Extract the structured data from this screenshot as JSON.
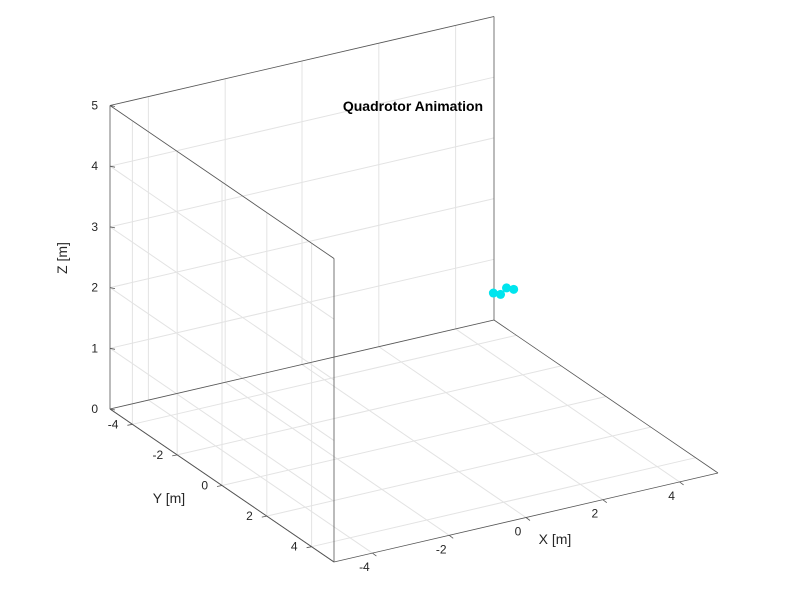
{
  "chart_data": {
    "type": "scatter",
    "title": "Quadrotor Animation",
    "xlabel": "X [m]",
    "ylabel": "Y [m]",
    "zlabel": "Z [m]",
    "xlim": [
      -5,
      5
    ],
    "ylim": [
      -5,
      5
    ],
    "zlim": [
      0,
      5
    ],
    "x_ticks": [
      -4,
      -2,
      0,
      2,
      4
    ],
    "y_ticks": [
      -4,
      -2,
      0,
      2,
      4
    ],
    "z_ticks": [
      0,
      1,
      2,
      3,
      4,
      5
    ],
    "x_tick_labels": [
      "-4",
      "-2",
      "0",
      "2",
      "4"
    ],
    "y_tick_labels": [
      "-4",
      "-2",
      "0",
      "2",
      "4"
    ],
    "z_tick_labels": [
      "0",
      "1",
      "2",
      "3",
      "4",
      "5"
    ],
    "grid": true,
    "series": [
      {
        "color": "#00e5ee",
        "points": [
          {
            "x": 2.3,
            "y": -0.4,
            "z": 2.0
          },
          {
            "x": 2.7,
            "y": -0.5,
            "z": 2.0
          },
          {
            "x": 2.4,
            "y": -0.25,
            "z": 2.0
          },
          {
            "x": 2.8,
            "y": -0.35,
            "z": 2.0
          }
        ]
      }
    ]
  },
  "colors": {
    "box_edge": "#555555",
    "grid": "#e3e3e3",
    "tick_mark": "#555555"
  }
}
